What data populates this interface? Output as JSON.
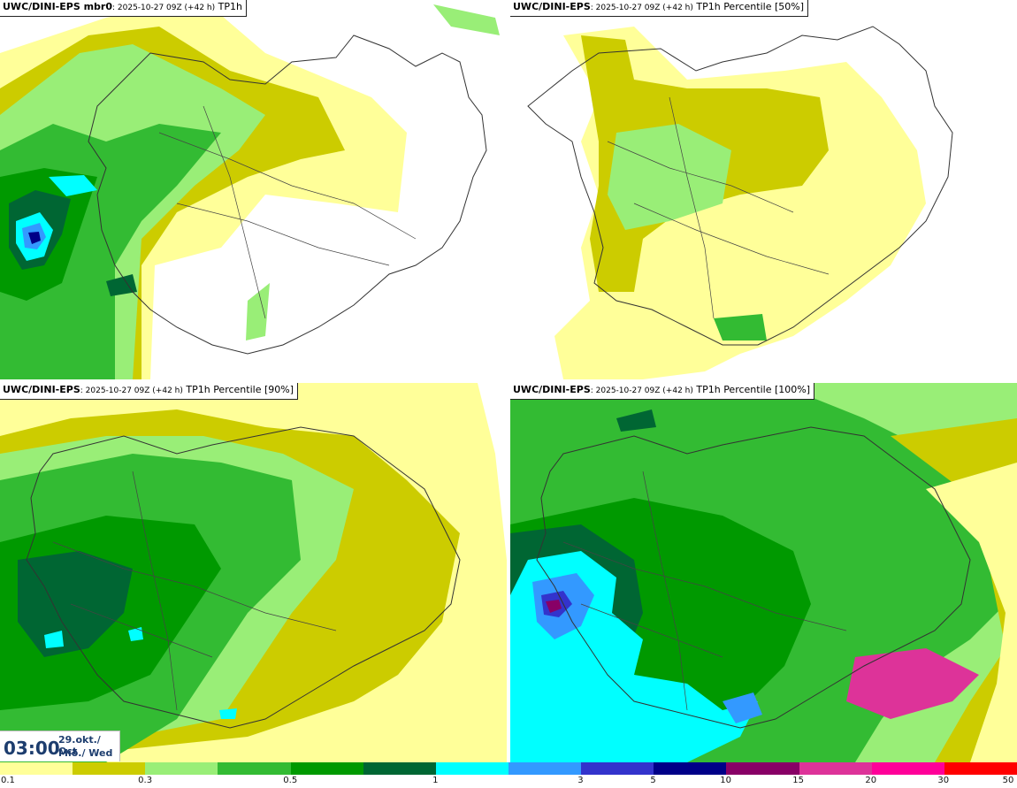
{
  "panels": [
    {
      "id": "p1",
      "title_bold": "UWC/DINI-EPS mbr0",
      "title_time": ": 2025-10-27 09Z (+42 h)",
      "title_field": " TP1h"
    },
    {
      "id": "p2",
      "title_bold": "UWC/DINI-EPS",
      "title_time": ": 2025-10-27 09Z (+42 h)",
      "title_field": " TP1h Percentile [50%]"
    },
    {
      "id": "p3",
      "title_bold": "UWC/DINI-EPS",
      "title_time": ": 2025-10-27 09Z (+42 h)",
      "title_field": " TP1h Percentile [90%]"
    },
    {
      "id": "p4",
      "title_bold": "UWC/DINI-EPS",
      "title_time": ": 2025-10-27 09Z (+42 h)",
      "title_field": " TP1h Percentile [100%]"
    }
  ],
  "time": {
    "clock": "03:00",
    "date_line": "29.okt./ Oct",
    "day_line": "Mið./ Wed"
  },
  "legend": {
    "labels": [
      "0.1",
      "0.3",
      "0.5",
      "1",
      "3",
      "5",
      "10",
      "15",
      "20",
      "30",
      "50"
    ],
    "colors": [
      "#ffff99",
      "#cccc00",
      "#99ee77",
      "#33bb33",
      "#009900",
      "#006633",
      "#00ffff",
      "#3399ff",
      "#3333cc",
      "#000088",
      "#880066",
      "#dd3399",
      "#ff0099",
      "#ff0000"
    ]
  }
}
